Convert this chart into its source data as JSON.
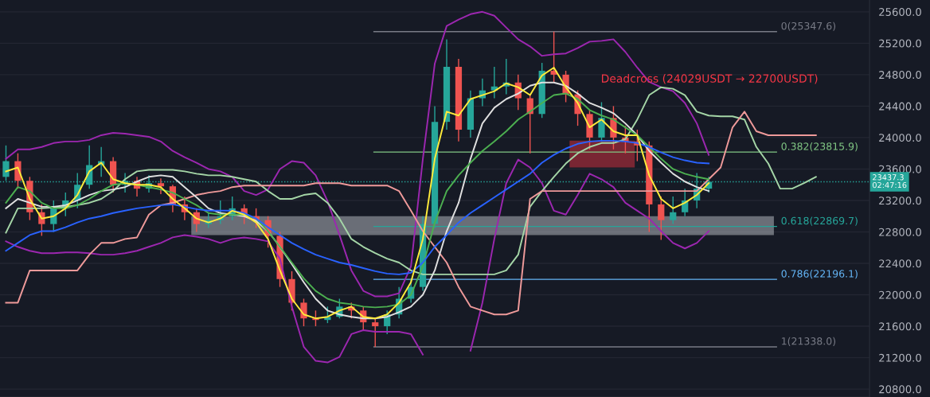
{
  "chart_data": {
    "type": "candlestick",
    "categories": [
      null,
      null,
      null,
      null,
      null,
      null,
      null,
      null,
      null,
      null,
      null,
      null,
      null,
      null,
      null,
      null,
      null,
      null,
      null,
      null,
      null,
      null,
      null,
      null,
      null,
      null,
      null,
      null,
      null,
      null,
      null,
      null,
      null,
      null,
      null,
      null,
      null,
      null,
      null,
      null,
      null,
      null,
      null,
      null,
      null,
      null,
      null,
      null,
      null,
      null,
      null,
      null,
      null,
      null,
      null,
      null,
      null,
      null,
      null,
      null,
      null,
      null,
      null,
      null,
      null,
      null,
      null,
      null,
      null,
      null,
      null,
      null,
      null
    ],
    "ohlc": [
      [
        23500,
        23900,
        23450,
        23700
      ],
      [
        23700,
        23800,
        23350,
        23450
      ],
      [
        23450,
        23500,
        22950,
        23050
      ],
      [
        23050,
        23150,
        22750,
        22900
      ],
      [
        22900,
        23200,
        22800,
        23100
      ],
      [
        23100,
        23300,
        23000,
        23200
      ],
      [
        23200,
        23550,
        23100,
        23400
      ],
      [
        23400,
        23900,
        23350,
        23650
      ],
      [
        23650,
        23880,
        23500,
        23700
      ],
      [
        23700,
        23750,
        23300,
        23400
      ],
      [
        23400,
        23550,
        23300,
        23450
      ],
      [
        23450,
        23500,
        23250,
        23350
      ],
      [
        23350,
        23520,
        23300,
        23420
      ],
      [
        23420,
        23480,
        23280,
        23380
      ],
      [
        23380,
        23400,
        23050,
        23150
      ],
      [
        23150,
        23250,
        22950,
        23050
      ],
      [
        23050,
        23100,
        22800,
        22900
      ],
      [
        22900,
        23050,
        22850,
        22950
      ],
      [
        22950,
        23200,
        22900,
        23000
      ],
      [
        23000,
        23250,
        22950,
        23100
      ],
      [
        23100,
        23150,
        22900,
        23000
      ],
      [
        23000,
        23100,
        22850,
        22950
      ],
      [
        22950,
        23000,
        22600,
        22750
      ],
      [
        22750,
        22800,
        22100,
        22200
      ],
      [
        22200,
        22300,
        21800,
        21900
      ],
      [
        21900,
        21950,
        21600,
        21700
      ],
      [
        21700,
        21800,
        21600,
        21680
      ],
      [
        21680,
        21850,
        21640,
        21720
      ],
      [
        21720,
        21950,
        21700,
        21850
      ],
      [
        21850,
        21900,
        21700,
        21800
      ],
      [
        21800,
        21850,
        21550,
        21650
      ],
      [
        21650,
        21700,
        21338,
        21600
      ],
      [
        21600,
        21800,
        21500,
        21750
      ],
      [
        21750,
        22100,
        21700,
        21950
      ],
      [
        21950,
        22200,
        21900,
        22100
      ],
      [
        22100,
        23000,
        22050,
        22900
      ],
      [
        22900,
        24400,
        22850,
        24200
      ],
      [
        24200,
        25250,
        24100,
        24900
      ],
      [
        24900,
        25000,
        23950,
        24100
      ],
      [
        24100,
        24600,
        24000,
        24500
      ],
      [
        24500,
        24750,
        24400,
        24600
      ],
      [
        24600,
        24900,
        24500,
        24650
      ],
      [
        24650,
        25000,
        24550,
        24700
      ],
      [
        24700,
        24800,
        24350,
        24500
      ],
      [
        24500,
        24550,
        23800,
        24300
      ],
      [
        24300,
        24950,
        24250,
        24850
      ],
      [
        24850,
        25347.6,
        24700,
        24800
      ],
      [
        24800,
        24850,
        24450,
        24550
      ],
      [
        24550,
        24600,
        24150,
        24300
      ],
      [
        24300,
        24350,
        23850,
        24000
      ],
      [
        24000,
        24450,
        23950,
        24250
      ],
      [
        24250,
        24400,
        23850,
        24000
      ],
      [
        24000,
        24150,
        23800,
        23950
      ],
      [
        23950,
        24100,
        23700,
        23900
      ],
      [
        23900,
        23950,
        22800,
        23150
      ],
      [
        23150,
        23250,
        22700,
        22950
      ],
      [
        22950,
        23250,
        22900,
        23050
      ],
      [
        23050,
        23350,
        23000,
        23200
      ],
      [
        23200,
        23550,
        23100,
        23350
      ],
      [
        23350,
        23500,
        23300,
        23437.3
      ],
      null,
      null,
      null,
      null,
      null,
      null,
      null,
      null,
      null,
      null,
      null,
      null,
      null
    ],
    "colors": [
      "#26a69a",
      "#ef5350",
      "#ef5350",
      "#ef5350",
      "#26a69a",
      "#26a69a",
      "#26a69a",
      "#26a69a",
      "#26a69a",
      "#ef5350",
      "#26a69a",
      "#ef5350",
      "#26a69a",
      "#ef5350",
      "#ef5350",
      "#ef5350",
      "#ef5350",
      "#26a69a",
      "#26a69a",
      "#26a69a",
      "#ef5350",
      "#ef5350",
      "#ef5350",
      "#ef5350",
      "#ef5350",
      "#ef5350",
      "#ef5350",
      "#26a69a",
      "#26a69a",
      "#ef5350",
      "#ef5350",
      "#ef5350",
      "#26a69a",
      "#26a69a",
      "#26a69a",
      "#26a69a",
      "#26a69a",
      "#26a69a",
      "#ef5350",
      "#26a69a",
      "#26a69a",
      "#26a69a",
      "#26a69a",
      "#ef5350",
      "#ef5350",
      "#26a69a",
      "#ef5350",
      "#ef5350",
      "#ef5350",
      "#ef5350",
      "#26a69a",
      "#ef5350",
      "#ef5350",
      "#ef5350",
      "#ef5350",
      "#ef5350",
      "#26a69a",
      "#26a69a",
      "#26a69a",
      "#26a69a",
      null,
      null,
      null,
      null,
      null,
      null,
      null,
      null,
      null,
      null,
      null,
      null,
      null
    ],
    "series": [
      {
        "type": "line",
        "color": "#9c27b0",
        "values": [
          23730,
          23850,
          23850,
          23880,
          23930,
          23950,
          23950,
          23970,
          24030,
          24060,
          24050,
          24030,
          24010,
          23950,
          23830,
          23750,
          23680,
          23600,
          23570,
          23500,
          23320,
          23270,
          23340,
          23600,
          23700,
          23680,
          23520,
          23190,
          22760,
          22310,
          22050,
          21980,
          21980,
          22020,
          22360,
          23730,
          24940,
          25420,
          25500,
          25570,
          25600,
          25550,
          25400,
          25250,
          25160,
          25040,
          25060,
          25070,
          25140,
          25220,
          25230,
          25250,
          25090,
          24890,
          24710,
          24640,
          24590,
          24440,
          24180,
          23780,
          null,
          null,
          null,
          null,
          null,
          null,
          null,
          null,
          null,
          null,
          null,
          null,
          null
        ]
      },
      {
        "type": "line",
        "color": "#9c27b0",
        "values": [
          22680,
          22610,
          22560,
          22530,
          22530,
          22540,
          22540,
          22530,
          22510,
          22510,
          22530,
          22560,
          22610,
          22660,
          22730,
          22760,
          22740,
          22710,
          22660,
          22710,
          22730,
          22710,
          22680,
          22460,
          21850,
          21340,
          21160,
          21140,
          21210,
          21500,
          21550,
          21530,
          21530,
          21530,
          21500,
          21240,
          null,
          null,
          null,
          21290,
          21900,
          22710,
          23420,
          23720,
          23620,
          23420,
          23070,
          23020,
          23270,
          23540,
          23470,
          23370,
          23170,
          23070,
          22970,
          22810,
          22660,
          22590,
          22660,
          22810,
          null,
          null,
          null,
          null,
          null,
          null,
          null,
          null,
          null,
          null,
          null,
          null,
          null
        ]
      },
      {
        "type": "line",
        "color": "#a5d6a7",
        "values": [
          22790,
          23100,
          23100,
          23100,
          23110,
          23120,
          23140,
          23170,
          23220,
          23320,
          23470,
          23570,
          23590,
          23590,
          23590,
          23570,
          23540,
          23520,
          23520,
          23500,
          23470,
          23440,
          23320,
          23220,
          23220,
          23270,
          23290,
          23170,
          22970,
          22710,
          22610,
          22530,
          22460,
          22410,
          22310,
          22260,
          22260,
          22260,
          22260,
          22260,
          22260,
          22260,
          22310,
          22510,
          23120,
          23320,
          23500,
          23670,
          23800,
          23880,
          23930,
          23930,
          23980,
          24230,
          24540,
          24640,
          24620,
          24540,
          24330,
          24280,
          24270,
          24270,
          24230,
          23880,
          23670,
          23350,
          23350,
          23420,
          23500,
          null,
          null,
          null,
          null
        ]
      },
      {
        "type": "line",
        "color": "#ef9a9a",
        "values": [
          21900,
          21900,
          22310,
          22310,
          22310,
          22310,
          22310,
          22510,
          22660,
          22660,
          22710,
          22730,
          23020,
          23140,
          23170,
          23220,
          23270,
          23300,
          23320,
          23370,
          23390,
          23390,
          23390,
          23390,
          23390,
          23390,
          23420,
          23420,
          23420,
          23390,
          23390,
          23390,
          23390,
          23320,
          23070,
          22810,
          22610,
          22410,
          22100,
          21850,
          21800,
          21750,
          21750,
          21800,
          23220,
          23320,
          23320,
          23320,
          23320,
          23320,
          23320,
          23320,
          23320,
          23320,
          23320,
          23320,
          23320,
          23320,
          23320,
          23470,
          23620,
          24130,
          24330,
          24080,
          24030,
          24030,
          24030,
          24030,
          24030,
          null,
          null,
          null,
          null
        ]
      },
      {
        "type": "line",
        "color": "#e0e0e0",
        "values": [
          23100,
          23220,
          23170,
          23120,
          23120,
          23140,
          23200,
          23270,
          23320,
          23340,
          23370,
          23440,
          23500,
          23520,
          23500,
          23370,
          23240,
          23100,
          23040,
          23020,
          23000,
          22940,
          22810,
          22610,
          22390,
          22160,
          21950,
          21800,
          21750,
          21720,
          21700,
          21700,
          21720,
          21780,
          21850,
          22000,
          22310,
          22810,
          23170,
          23730,
          24180,
          24380,
          24490,
          24560,
          24660,
          24700,
          24700,
          24660,
          24560,
          24440,
          24380,
          24310,
          24180,
          24030,
          23830,
          23680,
          23540,
          23440,
          23370,
          23320,
          null,
          null,
          null,
          null,
          null,
          null,
          null,
          null,
          null,
          null,
          null,
          null,
          null
        ]
      },
      {
        "type": "line",
        "color": "#4caf50",
        "values": [
          23170,
          23370,
          23320,
          23170,
          23100,
          23100,
          23140,
          23220,
          23320,
          23400,
          23420,
          23400,
          23370,
          23340,
          23300,
          23220,
          23140,
          23040,
          23020,
          23020,
          23020,
          22970,
          22810,
          22610,
          22410,
          22210,
          22050,
          21950,
          21900,
          21880,
          21850,
          21840,
          21850,
          21880,
          22000,
          22360,
          22920,
          23320,
          23520,
          23680,
          23830,
          23950,
          24080,
          24230,
          24330,
          24440,
          24540,
          24560,
          24490,
          24350,
          24280,
          24230,
          24130,
          24030,
          23880,
          23730,
          23600,
          23540,
          23500,
          23470,
          null,
          null,
          null,
          null,
          null,
          null,
          null,
          null,
          null,
          null,
          null,
          null,
          null
        ]
      },
      {
        "type": "line",
        "color": "#2962ff",
        "values": [
          22560,
          22660,
          22760,
          22810,
          22810,
          22860,
          22920,
          22970,
          23000,
          23040,
          23070,
          23100,
          23120,
          23140,
          23150,
          23120,
          23090,
          23070,
          23070,
          23070,
          23040,
          22970,
          22860,
          22760,
          22660,
          22580,
          22510,
          22460,
          22410,
          22380,
          22340,
          22300,
          22270,
          22260,
          22280,
          22410,
          22610,
          22760,
          22920,
          23040,
          23140,
          23240,
          23340,
          23440,
          23540,
          23680,
          23780,
          23860,
          23920,
          23950,
          23960,
          23960,
          23950,
          23930,
          23880,
          23810,
          23750,
          23710,
          23680,
          23670,
          null,
          null,
          null,
          null,
          null,
          null,
          null,
          null,
          null,
          null,
          null,
          null,
          null
        ]
      },
      {
        "type": "line",
        "color": "#ffeb3b",
        "values": [
          23570,
          23620,
          23220,
          22970,
          23000,
          23100,
          23270,
          23570,
          23680,
          23470,
          23420,
          23400,
          23400,
          23370,
          23220,
          23100,
          22970,
          22920,
          22970,
          23070,
          23020,
          22920,
          22710,
          22310,
          21950,
          21750,
          21700,
          21720,
          21800,
          21850,
          21720,
          21700,
          21750,
          21900,
          22160,
          22710,
          23730,
          24330,
          24280,
          24490,
          24540,
          24590,
          24690,
          24640,
          24540,
          24790,
          24890,
          24640,
          24440,
          24130,
          24230,
          24080,
          24030,
          24030,
          23520,
          23220,
          23100,
          23170,
          23270,
          23420,
          null,
          null,
          null,
          null,
          null,
          null,
          null,
          null,
          null,
          null,
          null,
          null,
          null
        ]
      }
    ],
    "ylim": [
      20700,
      25750
    ],
    "yticks": [
      {
        "value": 20800,
        "label": "20800.0"
      },
      {
        "value": 21200,
        "label": "21200.0"
      },
      {
        "value": 21600,
        "label": "21600.0"
      },
      {
        "value": 22000,
        "label": "22000.0"
      },
      {
        "value": 22400,
        "label": "22400.0"
      },
      {
        "value": 22800,
        "label": "22800.0"
      },
      {
        "value": 23200,
        "label": "23200.0"
      },
      {
        "value": 23600,
        "label": "23600.0"
      },
      {
        "value": 24000,
        "label": "24000.0"
      },
      {
        "value": 24400,
        "label": "24400.0"
      },
      {
        "value": 24800,
        "label": "24800.0"
      },
      {
        "value": 25200,
        "label": "25200.0"
      },
      {
        "value": 25600,
        "label": "25600.0"
      }
    ],
    "ref_lines": [
      {
        "axis": "y",
        "value": 25347.6,
        "label": "0(25347.6)",
        "color": "#787b86",
        "line_style": "solid"
      },
      {
        "axis": "y",
        "value": 23815.9,
        "label": "0.382(23815.9)",
        "color": "#81c784",
        "line_style": "solid"
      },
      {
        "axis": "y",
        "value": 22869.7,
        "label": "0.618(22869.7)",
        "color": "#26a69a",
        "line_style": "solid"
      },
      {
        "axis": "y",
        "value": 22196.1,
        "label": "0.786(22196.1)",
        "color": "#64b5f6",
        "line_style": "solid"
      },
      {
        "axis": "y",
        "value": 21338.0,
        "label": "1(21338.0)",
        "color": "#787b86",
        "line_style": "solid"
      },
      {
        "axis": "y",
        "value": 23437.3,
        "label": "23437.3\n02:47:16",
        "color": "#26a69a",
        "line_style": "dotted"
      }
    ],
    "bands": [
      {
        "axis": "y",
        "from": 22760,
        "to": 23000,
        "color": "#d1d4dc"
      },
      {
        "axis": "y",
        "from": 23620,
        "to": 23960,
        "color": "#f23645"
      }
    ],
    "annotations": [
      "Deadcross (24029USDT → 22700USDT)"
    ],
    "grid": "y",
    "tick_labels": "y"
  }
}
